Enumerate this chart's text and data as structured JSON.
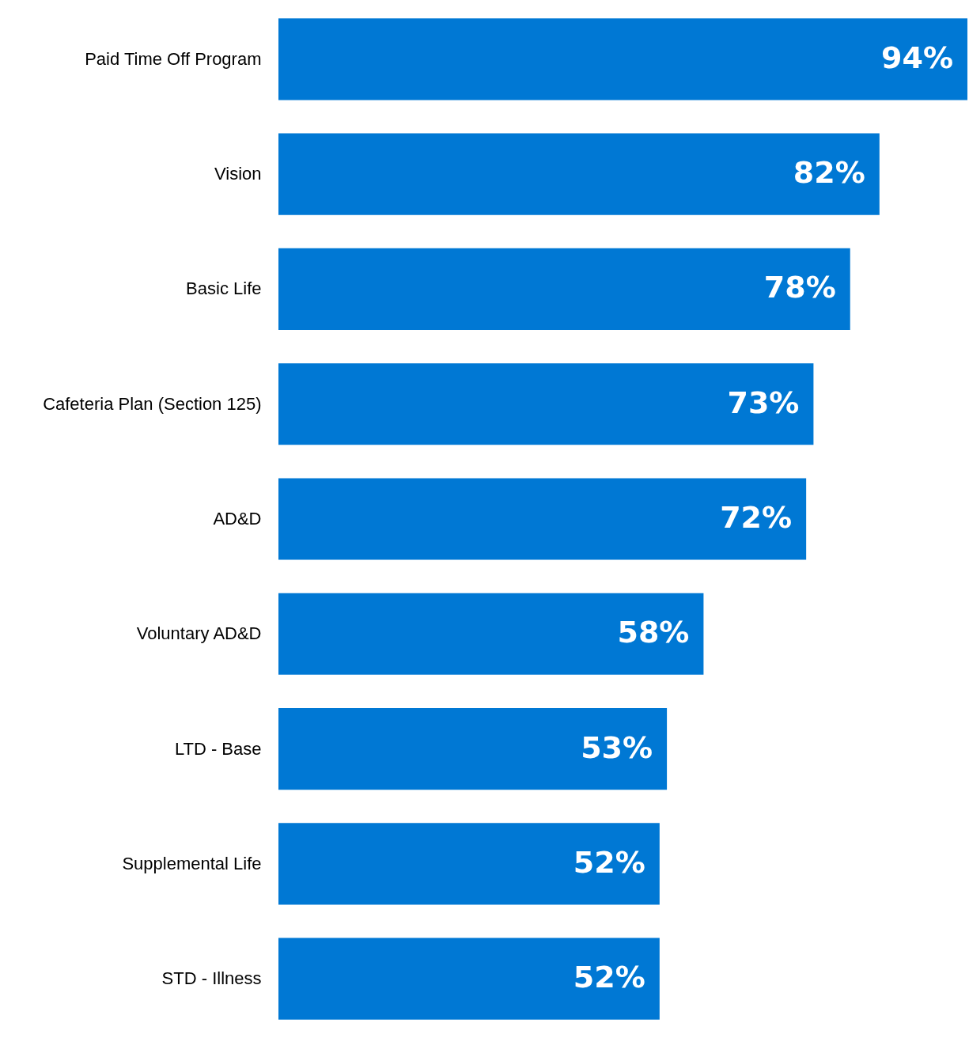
{
  "chart_data": {
    "type": "bar",
    "orientation": "horizontal",
    "categories": [
      "Paid Time Off Program",
      "Vision",
      "Basic Life",
      "Cafeteria Plan (Section 125)",
      "AD&D",
      "Voluntary AD&D",
      "LTD - Base",
      "Supplemental Life",
      "STD - Illness"
    ],
    "values": [
      94,
      82,
      78,
      73,
      72,
      58,
      53,
      52,
      52
    ],
    "value_labels": [
      "94%",
      "82%",
      "78%",
      "73%",
      "72%",
      "58%",
      "53%",
      "52%",
      "52%"
    ],
    "color": "#0078d4",
    "xlim": [
      0,
      94
    ],
    "tick_labels": "y"
  }
}
